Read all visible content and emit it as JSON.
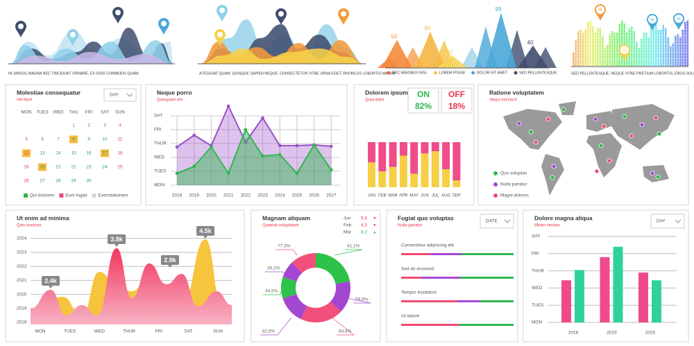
{
  "waves": {
    "caption": "IN VARIUS, MAGNA NEC TINCIDUNT ORNARE, EX ODIO COMMODO QUAM."
  },
  "mountains": {
    "caption": "A FEUGIAT QUAM. QUISQUE SAPIEN NEQUE, CONSECTETUR VITAE URNA EGET, RHONCUS LOBORTIS MASSA"
  },
  "peaks": {
    "values": [
      50,
      65,
      22,
      99,
      40
    ],
    "colors": [
      "#f58a3a",
      "#f5b642",
      "#f5d55a",
      "#4aa8d8",
      "#3f4d6e"
    ],
    "legend": [
      {
        "name": "NEC MAXIMUS NISL",
        "color": "#f26a3a"
      },
      {
        "name": "LOREM IPSUM",
        "color": "#f5c242"
      },
      {
        "name": "DOLOR SIT AMET",
        "color": "#4aa8d8"
      },
      {
        "name": "SED PELLENTESQUE",
        "color": "#3f4d6e"
      }
    ]
  },
  "equalizer": {
    "pins": [
      89,
      56,
      16,
      81
    ],
    "caption": "SED PELLENTESQUE, NEQUE VITAE PRETIUM LOBORTIS, EROS SOLLICITUD"
  },
  "calendar": {
    "title": "Molestiae consequatur",
    "subtitle": "Vel illum",
    "dropdown": "DAY",
    "weekdays": [
      "MON",
      "TUES",
      "WED",
      "THU",
      "FRI",
      "SAT",
      "SUN"
    ],
    "weeks": [
      [
        null,
        null,
        null,
        1,
        2,
        3,
        4
      ],
      [
        5,
        6,
        7,
        8,
        9,
        10,
        11
      ],
      [
        12,
        13,
        14,
        15,
        16,
        17,
        18
      ],
      [
        19,
        20,
        21,
        22,
        23,
        24,
        25
      ],
      [
        26,
        27,
        28,
        29,
        30,
        null,
        null
      ]
    ],
    "marked": [
      8,
      12,
      17,
      20
    ],
    "legend": [
      {
        "name": "Qui dolorem",
        "color": "#2db84c"
      },
      {
        "name": "Eum fugiat",
        "color": "#ef4b73"
      },
      {
        "name": "Exercitationem",
        "color": "#d8d8d8"
      }
    ]
  },
  "line_panel": {
    "title": "Neque porro",
    "subtitle": "Quisquam est",
    "categories": [
      "2018",
      "2019",
      "2020",
      "2021",
      "2022",
      "2023",
      "2024",
      "2025",
      "2026",
      "2027"
    ],
    "yticks": [
      "MON",
      "TUES",
      "WED",
      "THUR",
      "FRI",
      "SAT"
    ],
    "series": [
      {
        "color": "#9b4fc9",
        "values": [
          2.75,
          3.6,
          2.85,
          5.7,
          3.1,
          4.85,
          2.85,
          2.85,
          2.9,
          2.8
        ]
      },
      {
        "color": "#2db84c",
        "values": [
          0.85,
          1.35,
          2.75,
          0.85,
          4,
          2.1,
          2.2,
          0.85,
          2.9,
          1.1
        ]
      }
    ]
  },
  "stacked": {
    "title": "Dolorem ipsum",
    "subtitle": "Quia dolor",
    "on": {
      "label": "ON",
      "value": "82%"
    },
    "off": {
      "label": "OFF",
      "value": "18%"
    },
    "categories": [
      "JAN",
      "FEB",
      "MAR",
      "APR",
      "MAY",
      "JUN",
      "JUL",
      "AUG",
      "SEP"
    ],
    "ylim": [
      0,
      100
    ],
    "series": [
      {
        "color": "#f7cf45",
        "values": [
          55,
          35,
          45,
          70,
          30,
          75,
          80,
          40,
          15
        ]
      },
      {
        "color": "#ee4d8a",
        "values": [
          45,
          65,
          55,
          30,
          70,
          25,
          20,
          60,
          85
        ]
      }
    ]
  },
  "map": {
    "title": "Ratione voluptatem",
    "subtitle": "Sequi nesciunt",
    "legend": [
      {
        "name": "Quo voluptas",
        "color": "#2db84c"
      },
      {
        "name": "Nulla pariatur",
        "color": "#a347d1"
      },
      {
        "name": "Magni dolores",
        "color": "#ef4b73"
      }
    ]
  },
  "area": {
    "title": "Ut enim ad minima",
    "subtitle": "Quis nostrum",
    "yticks": [
      2018,
      2019,
      2020,
      2021,
      2022,
      2023,
      2024
    ],
    "categories": [
      "MON",
      "TUES",
      "WED",
      "THUR",
      "FRI",
      "SAT",
      "SUN"
    ],
    "callouts": [
      "2.4k",
      "3.8k",
      "2.9k",
      "4.5k"
    ]
  },
  "donut": {
    "title": "Magnam aliquam",
    "subtitle": "Quaerat voluptatem",
    "changes": [
      {
        "month": "Jun",
        "value": "5,6",
        "trend": "▼",
        "color": "#e8344d"
      },
      {
        "month": "Feb",
        "value": "4,3",
        "trend": "▼",
        "color": "#e8344d"
      },
      {
        "month": "Mar",
        "value": "8,2",
        "trend": "▲",
        "color": "#2db84c"
      }
    ],
    "segments": [
      {
        "color": "#2ec24a",
        "share": 0.22
      },
      {
        "color": "#a347d1",
        "share": 0.15
      },
      {
        "color": "#f0507a",
        "share": 0.2
      },
      {
        "color": "#a347d1",
        "share": 0.13
      },
      {
        "color": "#2ec24a",
        "share": 0.1
      },
      {
        "color": "#a347d1",
        "share": 0.08
      },
      {
        "color": "#f0507a",
        "share": 0.12
      }
    ],
    "labels": [
      {
        "text": "77,3%",
        "color": "#f0507a"
      },
      {
        "text": "41,1%",
        "color": "#2ec24a"
      },
      {
        "text": "35,2%",
        "color": "#a347d1"
      },
      {
        "text": "44,5%",
        "color": "#2ec24a"
      },
      {
        "text": "59,9%",
        "color": "#a347d1"
      },
      {
        "text": "82,6%",
        "color": "#a347d1"
      },
      {
        "text": "64,4%",
        "color": "#f0507a"
      }
    ]
  },
  "progress": {
    "title": "Fugiat quo voluptas",
    "subtitle": "Nulla pariatur",
    "dropdown": "DATE",
    "colors": [
      "#ef4b73",
      "#a347d1",
      "#2db84c"
    ],
    "rows": [
      {
        "label": "Consectetur adipiscing elit",
        "values": [
          26,
          28,
          46
        ]
      },
      {
        "label": "Sed do eiusmod",
        "values": [
          18,
          35,
          47
        ]
      },
      {
        "label": "Tempor incididunt",
        "values": [
          50,
          20,
          30
        ]
      },
      {
        "label": "Ut labore",
        "values": [
          52,
          0,
          48
        ]
      }
    ]
  },
  "bars": {
    "title": "Dolore magna aliqua",
    "subtitle": "Minim veniam",
    "dropdown": "DAY",
    "yticks": [
      "MON",
      "TUES",
      "WED",
      "THUR",
      "FRI",
      "SAT"
    ],
    "categories": [
      "2018",
      "2019",
      "2020"
    ],
    "series": [
      {
        "color": "#ef4b8a",
        "values": [
          2.45,
          3.8,
          2.9
        ]
      },
      {
        "color": "#2fd39a",
        "values": [
          3.05,
          4.4,
          2.45
        ]
      }
    ]
  }
}
